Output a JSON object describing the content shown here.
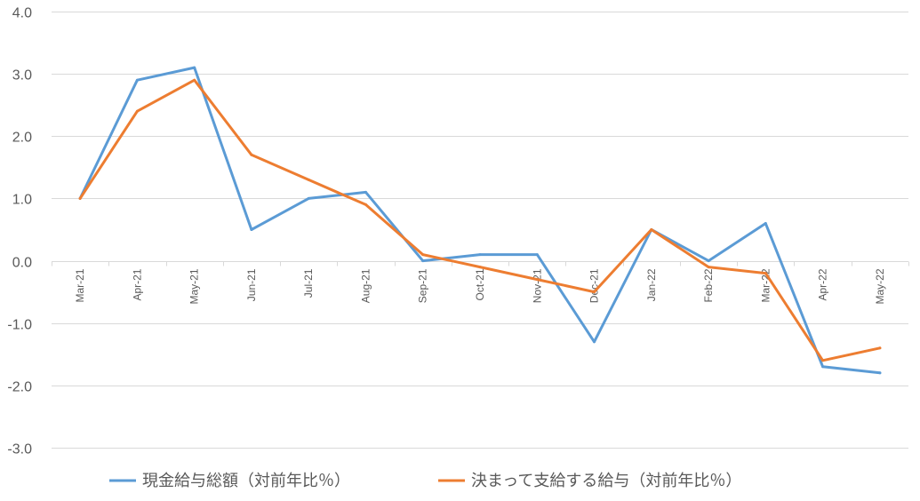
{
  "chart_data": {
    "type": "line",
    "title": "",
    "xlabel": "",
    "ylabel": "",
    "ylim": [
      -3.0,
      4.0
    ],
    "yticks": [
      "4.0",
      "3.0",
      "2.0",
      "1.0",
      "0.0",
      "-1.0",
      "-2.0",
      "-3.0"
    ],
    "ytick_values": [
      4,
      3,
      2,
      1,
      0,
      -1,
      -2,
      -3
    ],
    "grid": true,
    "legend_position": "bottom",
    "categories": [
      "Mar-21",
      "Apr-21",
      "May-21",
      "Jun-21",
      "Jul-21",
      "Aug-21",
      "Sep-21",
      "Oct-21",
      "Nov-21",
      "Dec-21",
      "Jan-22",
      "Feb-22",
      "Mar-22",
      "Apr-22",
      "May-22"
    ],
    "series": [
      {
        "name": "現金給与総額（対前年比％）",
        "color": "#5B9BD5",
        "values": [
          1.0,
          2.9,
          3.1,
          0.5,
          1.0,
          1.1,
          0.0,
          0.1,
          0.1,
          -1.3,
          0.5,
          0.0,
          0.6,
          -1.7,
          -1.8
        ]
      },
      {
        "name": "決まって支給する給与（対前年比％）",
        "color": "#ED7D31",
        "values": [
          1.0,
          2.4,
          2.9,
          1.7,
          1.3,
          0.9,
          0.1,
          -0.1,
          -0.3,
          -0.5,
          0.5,
          -0.1,
          -0.2,
          -1.6,
          -1.4
        ]
      }
    ]
  }
}
